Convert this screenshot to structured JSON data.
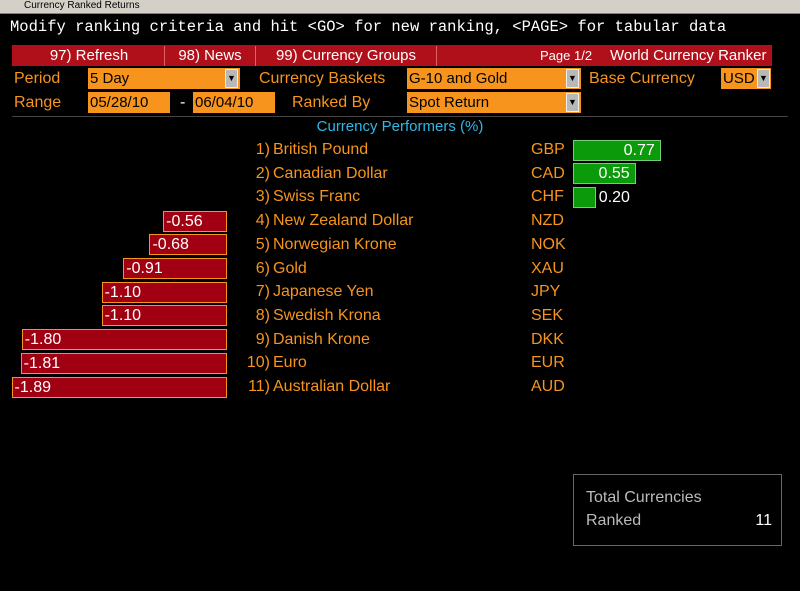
{
  "window_title": "Currency Ranked Returns",
  "command_line": "Modify ranking criteria and hit <GO> for new ranking, <PAGE> for tabular data",
  "menu": {
    "items": [
      "97) Refresh",
      "98) News",
      "99) Currency Groups"
    ],
    "page": "Page 1/2",
    "title": "World Currency Ranker"
  },
  "fields": {
    "period_label": "Period",
    "period": "5 Day",
    "baskets_label": "Currency Baskets",
    "baskets": "G-10 and Gold",
    "base_label": "Base Currency",
    "base": "USD",
    "range_label": "Range",
    "range_start": "05/28/10",
    "range_sep": "-",
    "range_end": "06/04/10",
    "ranked_by_label": "Ranked By",
    "ranked_by": "Spot Return"
  },
  "ranking": {
    "title": "Currency Performers (%)",
    "ranks": [
      "1)",
      "2)",
      "3)",
      "4)",
      "5)",
      "6)",
      "7)",
      "8)",
      "9)",
      "10)",
      "11)"
    ],
    "names": [
      "British Pound",
      "Canadian Dollar",
      "Swiss Franc",
      "New Zealand Dollar",
      "Norwegian Krone",
      "Gold",
      "Japanese Yen",
      "Swedish Krona",
      "Danish Krone",
      "Euro",
      "Australian Dollar"
    ],
    "codes": [
      "GBP",
      "CAD",
      "CHF",
      "NZD",
      "NOK",
      "XAU",
      "JPY",
      "SEK",
      "DKK",
      "EUR",
      "AUD"
    ],
    "values": [
      0.77,
      0.55,
      0.2,
      -0.56,
      -0.68,
      -0.91,
      -1.1,
      -1.1,
      -1.8,
      -1.81,
      -1.89
    ],
    "value_labels": [
      "0.77",
      "0.55",
      "0.20",
      "-0.56",
      "-0.68",
      "-0.91",
      "-1.10",
      "-1.10",
      "-1.80",
      "-1.81",
      "-1.89"
    ]
  },
  "summary": {
    "label_1": "Total Currencies",
    "label_2": "Ranked",
    "count": 11
  }
}
